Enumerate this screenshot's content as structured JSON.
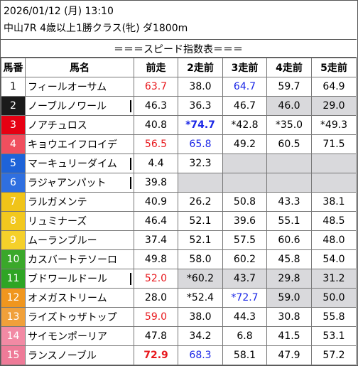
{
  "header": {
    "datetime": "2026/01/12 (月) 13:10",
    "race": "中山7R 4歳以上1勝クラス(牝) ダ1800m",
    "table_title": "＝＝＝スピード指数表＝＝＝"
  },
  "columns": [
    "馬番",
    "馬名",
    "前走",
    "2走前",
    "3走前",
    "4走前",
    "5走前"
  ],
  "rows": [
    {
      "num": "1",
      "name": "フィールオーサム",
      "bg": "#ffffff",
      "fg": "#000000",
      "bar": false,
      "vals": [
        {
          "t": "63.7",
          "c": "red"
        },
        {
          "t": "38.0"
        },
        {
          "t": "64.7",
          "c": "blue"
        },
        {
          "t": "59.7"
        },
        {
          "t": "64.9"
        }
      ],
      "gray": [
        false,
        false,
        false,
        false,
        false
      ]
    },
    {
      "num": "2",
      "name": "ノーブルノワール",
      "bg": "#1a1a1a",
      "fg": "#ffffff",
      "bar": true,
      "vals": [
        {
          "t": "46.3"
        },
        {
          "t": "36.3"
        },
        {
          "t": "46.7"
        },
        {
          "t": "46.0"
        },
        {
          "t": "29.0"
        }
      ],
      "gray": [
        false,
        false,
        false,
        true,
        true
      ]
    },
    {
      "num": "3",
      "name": "ノアチュロス",
      "bg": "#e60012",
      "fg": "#ffffff",
      "bar": false,
      "vals": [
        {
          "t": "40.8"
        },
        {
          "t": "*74.7",
          "c": "blue",
          "b": true
        },
        {
          "t": "*42.8"
        },
        {
          "t": "*35.0"
        },
        {
          "t": "*49.3"
        }
      ],
      "gray": [
        false,
        false,
        false,
        false,
        false
      ]
    },
    {
      "num": "4",
      "name": "キョウエイフロイデ",
      "bg": "#f04f5e",
      "fg": "#ffffff",
      "bar": false,
      "vals": [
        {
          "t": "56.5",
          "c": "red"
        },
        {
          "t": "65.8",
          "c": "blue"
        },
        {
          "t": "49.2"
        },
        {
          "t": "60.5"
        },
        {
          "t": "71.5"
        }
      ],
      "gray": [
        false,
        false,
        false,
        false,
        false
      ]
    },
    {
      "num": "5",
      "name": "マーキュリーダイム",
      "bg": "#1e63d8",
      "fg": "#ffffff",
      "bar": true,
      "vals": [
        {
          "t": "4.4"
        },
        {
          "t": "32.3"
        },
        {
          "t": ""
        },
        {
          "t": ""
        },
        {
          "t": ""
        }
      ],
      "gray": [
        false,
        false,
        true,
        true,
        true
      ]
    },
    {
      "num": "6",
      "name": "ラジャアンパット",
      "bg": "#2f6fe0",
      "fg": "#ffffff",
      "bar": true,
      "vals": [
        {
          "t": "39.8"
        },
        {
          "t": ""
        },
        {
          "t": ""
        },
        {
          "t": ""
        },
        {
          "t": ""
        }
      ],
      "gray": [
        false,
        true,
        true,
        true,
        true
      ]
    },
    {
      "num": "7",
      "name": "ラルガメンテ",
      "bg": "#f0c419",
      "fg": "#ffffff",
      "bar": false,
      "vals": [
        {
          "t": "40.9"
        },
        {
          "t": "26.2"
        },
        {
          "t": "50.8"
        },
        {
          "t": "43.3"
        },
        {
          "t": "38.1"
        }
      ],
      "gray": [
        false,
        false,
        false,
        false,
        false
      ]
    },
    {
      "num": "8",
      "name": "リュミナーズ",
      "bg": "#f2c81e",
      "fg": "#ffffff",
      "bar": false,
      "vals": [
        {
          "t": "46.4"
        },
        {
          "t": "52.1"
        },
        {
          "t": "39.6"
        },
        {
          "t": "55.1"
        },
        {
          "t": "48.5"
        }
      ],
      "gray": [
        false,
        false,
        false,
        false,
        false
      ]
    },
    {
      "num": "9",
      "name": "ムーランブルー",
      "bg": "#f5d02a",
      "fg": "#ffffff",
      "bar": false,
      "vals": [
        {
          "t": "37.4"
        },
        {
          "t": "52.1"
        },
        {
          "t": "57.5"
        },
        {
          "t": "60.6"
        },
        {
          "t": "48.0"
        }
      ],
      "gray": [
        false,
        false,
        false,
        false,
        false
      ]
    },
    {
      "num": "10",
      "name": "カスバートテソーロ",
      "bg": "#3aa82a",
      "fg": "#ffffff",
      "bar": false,
      "vals": [
        {
          "t": "49.8"
        },
        {
          "t": "58.0"
        },
        {
          "t": "60.2"
        },
        {
          "t": "45.8"
        },
        {
          "t": "54.0"
        }
      ],
      "gray": [
        false,
        false,
        false,
        false,
        false
      ]
    },
    {
      "num": "11",
      "name": "ブドワールドール",
      "bg": "#2ea524",
      "fg": "#ffffff",
      "bar": true,
      "vals": [
        {
          "t": "52.0",
          "c": "red"
        },
        {
          "t": "*60.2"
        },
        {
          "t": "43.7"
        },
        {
          "t": "29.8"
        },
        {
          "t": "31.2"
        }
      ],
      "gray": [
        false,
        true,
        true,
        true,
        true
      ]
    },
    {
      "num": "12",
      "name": "オメガストリーム",
      "bg": "#f0961e",
      "fg": "#ffffff",
      "bar": false,
      "vals": [
        {
          "t": "28.0"
        },
        {
          "t": "*52.4"
        },
        {
          "t": "*72.7",
          "c": "blue"
        },
        {
          "t": "59.0"
        },
        {
          "t": "50.0"
        }
      ],
      "gray": [
        false,
        false,
        false,
        true,
        true
      ]
    },
    {
      "num": "13",
      "name": "ライズトゥザトップ",
      "bg": "#f0a03a",
      "fg": "#ffffff",
      "bar": false,
      "vals": [
        {
          "t": "59.0",
          "c": "red"
        },
        {
          "t": "38.0"
        },
        {
          "t": "44.3"
        },
        {
          "t": "30.8"
        },
        {
          "t": "55.8"
        }
      ],
      "gray": [
        false,
        false,
        false,
        false,
        false
      ]
    },
    {
      "num": "14",
      "name": "サイモンポーリア",
      "bg": "#f28aa4",
      "fg": "#ffffff",
      "bar": false,
      "vals": [
        {
          "t": "47.8"
        },
        {
          "t": "34.2"
        },
        {
          "t": "6.8"
        },
        {
          "t": "41.5"
        },
        {
          "t": "53.1"
        }
      ],
      "gray": [
        false,
        false,
        false,
        false,
        false
      ]
    },
    {
      "num": "15",
      "name": "ランスノーブル",
      "bg": "#ee7b98",
      "fg": "#ffffff",
      "bar": false,
      "vals": [
        {
          "t": "72.9",
          "c": "red",
          "b": true
        },
        {
          "t": "68.3",
          "c": "blue"
        },
        {
          "t": "58.1"
        },
        {
          "t": "47.9"
        },
        {
          "t": "57.2"
        }
      ],
      "gray": [
        false,
        false,
        false,
        false,
        false
      ]
    }
  ]
}
